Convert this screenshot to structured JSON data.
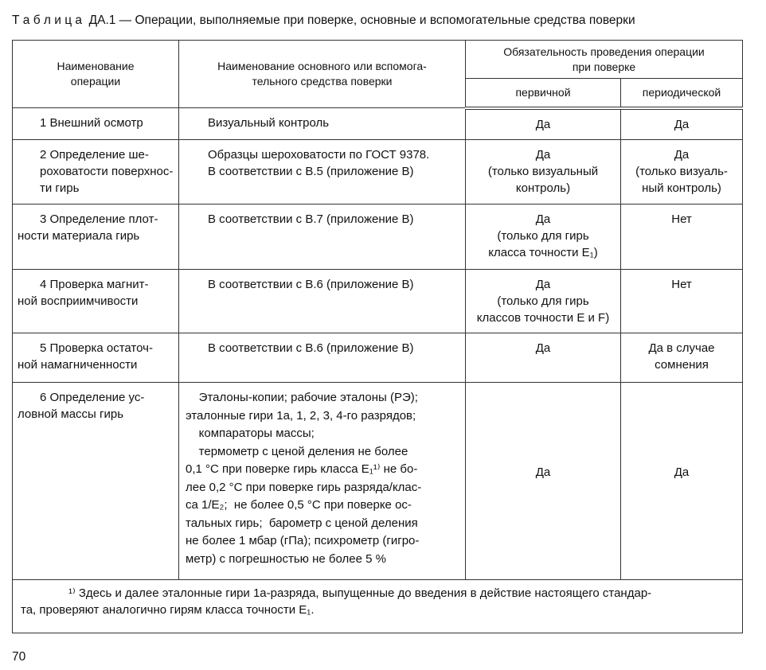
{
  "title": "Т а б л и ц а  ДА.1 — Операции, выполняемые при поверке, основные и вспомогательные средства поверки",
  "headers": {
    "operation": "Наименование\nоперации",
    "means": "Наименование основного или вспомога-\nтельного средства поверки",
    "obligation": "Обязательность проведения операции\nпри поверке",
    "primary": "первичной",
    "periodic": "периодической"
  },
  "rows": [
    {
      "operation": "1 Внешний осмотр",
      "means": "Визуальный контроль",
      "primary": "Да",
      "periodic": "Да"
    },
    {
      "operation": "2 Определение ше-\nроховатости поверхнос-\nти гирь",
      "means": "Образцы шероховатости по ГОСТ 9378.\nВ соответствии с В.5 (приложение В)",
      "primary": "Да\n(только визуальный\nконтроль)",
      "periodic": "Да\n(только визуаль-\nный контроль)"
    },
    {
      "operation": "3 Определение плот-\nности материала гирь",
      "means": "В соответствии с В.7 (приложение В)",
      "primary": "Да\n(только для гирь\nкласса точности E₁)",
      "periodic": "Нет"
    },
    {
      "operation": "4 Проверка магнит-\nной восприимчивости",
      "means": "В соответствии с В.6 (приложение В)",
      "primary": "Да\n(только для гирь\nклассов точности E и F)",
      "periodic": "Нет"
    },
    {
      "operation": "5 Проверка остаточ-\nной намагниченности",
      "means": "В соответствии с В.6 (приложение В)",
      "primary": "Да",
      "periodic": "Да в случае\nсомнения"
    },
    {
      "operation": "6 Определение ус-\nловной массы гирь",
      "means": "    Эталоны-копии; рабочие эталоны (РЭ);\nэталонные гири 1а, 1, 2, 3, 4-го разрядов;\n    компараторы массы;\n    термометр с ценой деления не более\n0,1 °С при поверке гирь класса E₁¹⁾ не бо-\nлее 0,2 °С при поверке гирь разряда/клас-\nса 1/E₂;  не более 0,5 °С при поверке ос-\nтальных гирь;  барометр с ценой деления\nне более 1 мбар (гПа); психрометр (гигро-\nметр) с погрешностью не более 5 %",
      "primary": "Да",
      "periodic": "Да"
    }
  ],
  "footnote": "¹⁾ Здесь и далее эталонные гири 1а-разряда, выпущенные до введения в действие настоящего стандар-\nта, проверяют аналогично гирям класса точности E₁.",
  "page_number": "70"
}
